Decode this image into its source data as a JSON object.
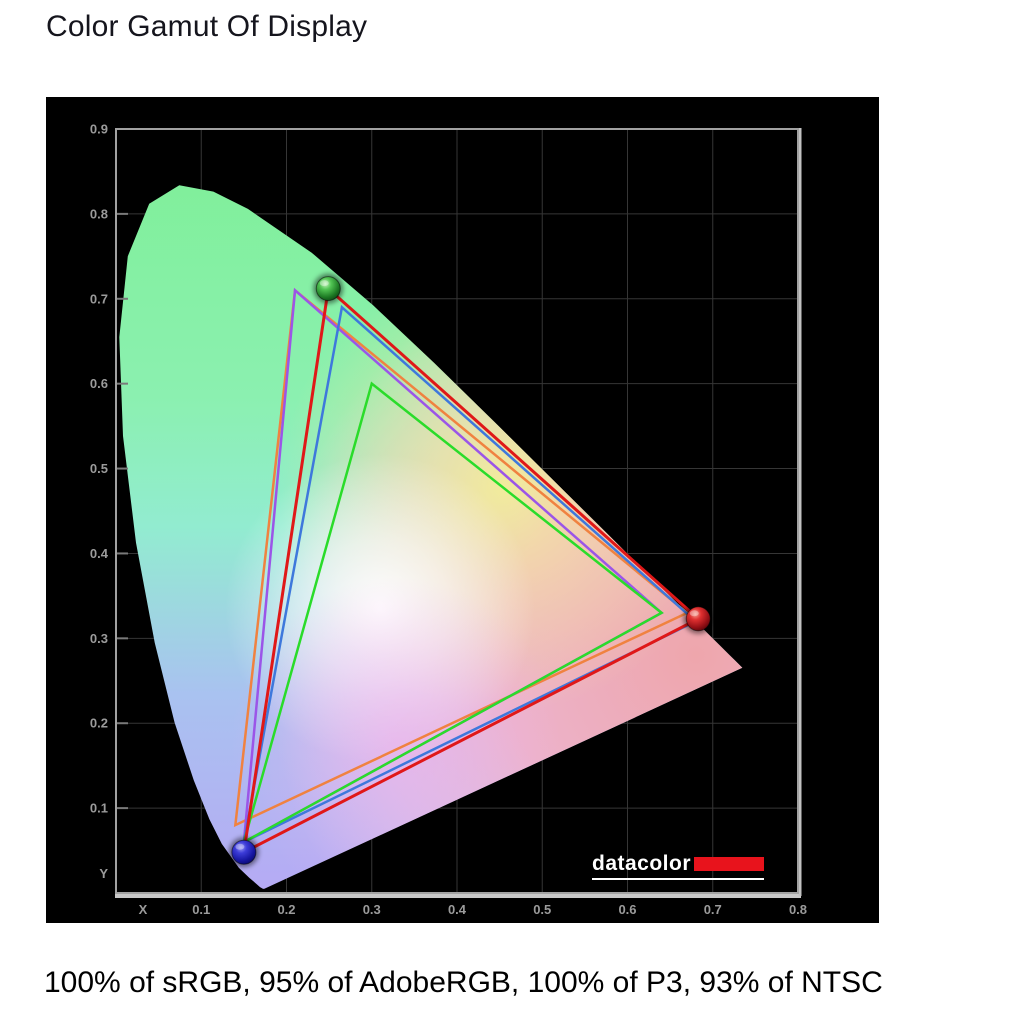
{
  "page": {
    "title": "Color Gamut Of Display",
    "caption": "100% of sRGB, 95% of AdobeRGB, 100% of P3, 93% of NTSC"
  },
  "logo": {
    "text": "datacolor",
    "bar_color": "#e8131c"
  },
  "chart_data": {
    "type": "chromaticity-gamut",
    "title": "Color Gamut Of Display",
    "xlabel": "X",
    "ylabel": "Y",
    "x_range": [
      0,
      0.8
    ],
    "y_range": [
      0,
      0.9
    ],
    "x_ticks": [
      0.1,
      0.2,
      0.3,
      0.4,
      0.5,
      0.6,
      0.7,
      0.8
    ],
    "y_ticks": [
      0.1,
      0.2,
      0.3,
      0.4,
      0.5,
      0.6,
      0.7,
      0.8,
      0.9
    ],
    "grid": true,
    "grid_color": "#363636",
    "background": "#000000",
    "coverage": {
      "sRGB": "100%",
      "AdobeRGB": "95%",
      "P3": "100%",
      "NTSC": "93%"
    },
    "series": [
      {
        "name": "NTSC",
        "color": "#f08240",
        "width": 2.5,
        "points": [
          [
            0.21,
            0.71
          ],
          [
            0.67,
            0.33
          ],
          [
            0.14,
            0.08
          ]
        ]
      },
      {
        "name": "AdobeRGB",
        "color": "#9b55e8",
        "width": 2.5,
        "points": [
          [
            0.21,
            0.71
          ],
          [
            0.64,
            0.33
          ],
          [
            0.15,
            0.06
          ]
        ]
      },
      {
        "name": "P3",
        "color": "#3e78dc",
        "width": 2.5,
        "points": [
          [
            0.265,
            0.69
          ],
          [
            0.68,
            0.32
          ],
          [
            0.15,
            0.06
          ]
        ]
      },
      {
        "name": "sRGB",
        "color": "#2adc2a",
        "width": 2.5,
        "points": [
          [
            0.3,
            0.6
          ],
          [
            0.64,
            0.33
          ],
          [
            0.15,
            0.06
          ]
        ]
      },
      {
        "name": "Display",
        "color": "#e01818",
        "width": 3,
        "points": [
          [
            0.249,
            0.712
          ],
          [
            0.683,
            0.323
          ],
          [
            0.15,
            0.048
          ]
        ]
      }
    ],
    "markers": [
      {
        "name": "green-primary",
        "x": 0.249,
        "y": 0.712,
        "ball": "green"
      },
      {
        "name": "red-primary",
        "x": 0.683,
        "y": 0.323,
        "ball": "red"
      },
      {
        "name": "blue-primary",
        "x": 0.15,
        "y": 0.048,
        "ball": "blue"
      }
    ],
    "spectral_locus": [
      [
        0.1741,
        0.005
      ],
      [
        0.1726,
        0.0048
      ],
      [
        0.1689,
        0.0069
      ],
      [
        0.1644,
        0.0109
      ],
      [
        0.1566,
        0.0177
      ],
      [
        0.144,
        0.0297
      ],
      [
        0.1241,
        0.0578
      ],
      [
        0.1096,
        0.0868
      ],
      [
        0.0913,
        0.1327
      ],
      [
        0.0687,
        0.2007
      ],
      [
        0.0454,
        0.295
      ],
      [
        0.0235,
        0.4127
      ],
      [
        0.0082,
        0.5384
      ],
      [
        0.0039,
        0.6548
      ],
      [
        0.0139,
        0.7502
      ],
      [
        0.0389,
        0.812
      ],
      [
        0.0743,
        0.8338
      ],
      [
        0.1142,
        0.8262
      ],
      [
        0.1547,
        0.8059
      ],
      [
        0.2296,
        0.7543
      ],
      [
        0.3016,
        0.6923
      ],
      [
        0.3731,
        0.6245
      ],
      [
        0.4441,
        0.5547
      ],
      [
        0.5125,
        0.4866
      ],
      [
        0.5752,
        0.4242
      ],
      [
        0.627,
        0.3725
      ],
      [
        0.6658,
        0.334
      ],
      [
        0.6915,
        0.3083
      ],
      [
        0.7079,
        0.292
      ],
      [
        0.719,
        0.2809
      ],
      [
        0.726,
        0.274
      ],
      [
        0.7347,
        0.2653
      ]
    ]
  }
}
